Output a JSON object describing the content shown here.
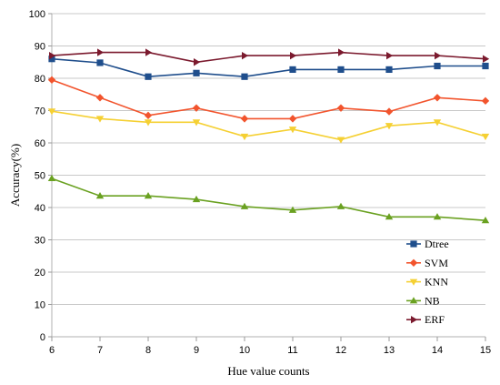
{
  "chart_data": {
    "type": "line",
    "title": "",
    "xlabel": "Hue value counts",
    "ylabel": "Accuracy(%)",
    "x": [
      6,
      7,
      8,
      9,
      10,
      11,
      12,
      13,
      14,
      15
    ],
    "xlim": [
      6,
      15
    ],
    "ylim": [
      0,
      100
    ],
    "y_ticks": [
      0,
      10,
      20,
      30,
      40,
      50,
      60,
      70,
      80,
      90,
      100
    ],
    "grid": "horizontal",
    "legend_position": "bottom-right",
    "series": [
      {
        "name": "Dtree",
        "color": "#1f4e8c",
        "marker": "square",
        "values": [
          86,
          84.8,
          80.5,
          81.6,
          80.5,
          82.7,
          82.7,
          82.7,
          83.8,
          83.8
        ]
      },
      {
        "name": "SVM",
        "color": "#f2542d",
        "marker": "diamond",
        "values": [
          79.5,
          74,
          68.5,
          70.8,
          67.5,
          67.5,
          70.8,
          69.7,
          74,
          73
        ]
      },
      {
        "name": "KNN",
        "color": "#f5d033",
        "marker": "triangle-down",
        "values": [
          69.8,
          67.5,
          66.4,
          66.4,
          62,
          64.2,
          61,
          65.3,
          66.4,
          62
        ]
      },
      {
        "name": "NB",
        "color": "#6aa121",
        "marker": "triangle-up",
        "values": [
          49,
          43.6,
          43.6,
          42.5,
          40.3,
          39.2,
          40.3,
          37.1,
          37.1,
          36
        ]
      },
      {
        "name": "ERF",
        "color": "#7b1a2e",
        "marker": "triangle-right",
        "values": [
          87,
          88,
          88,
          85,
          87,
          87,
          88,
          87,
          87,
          86
        ]
      }
    ]
  }
}
